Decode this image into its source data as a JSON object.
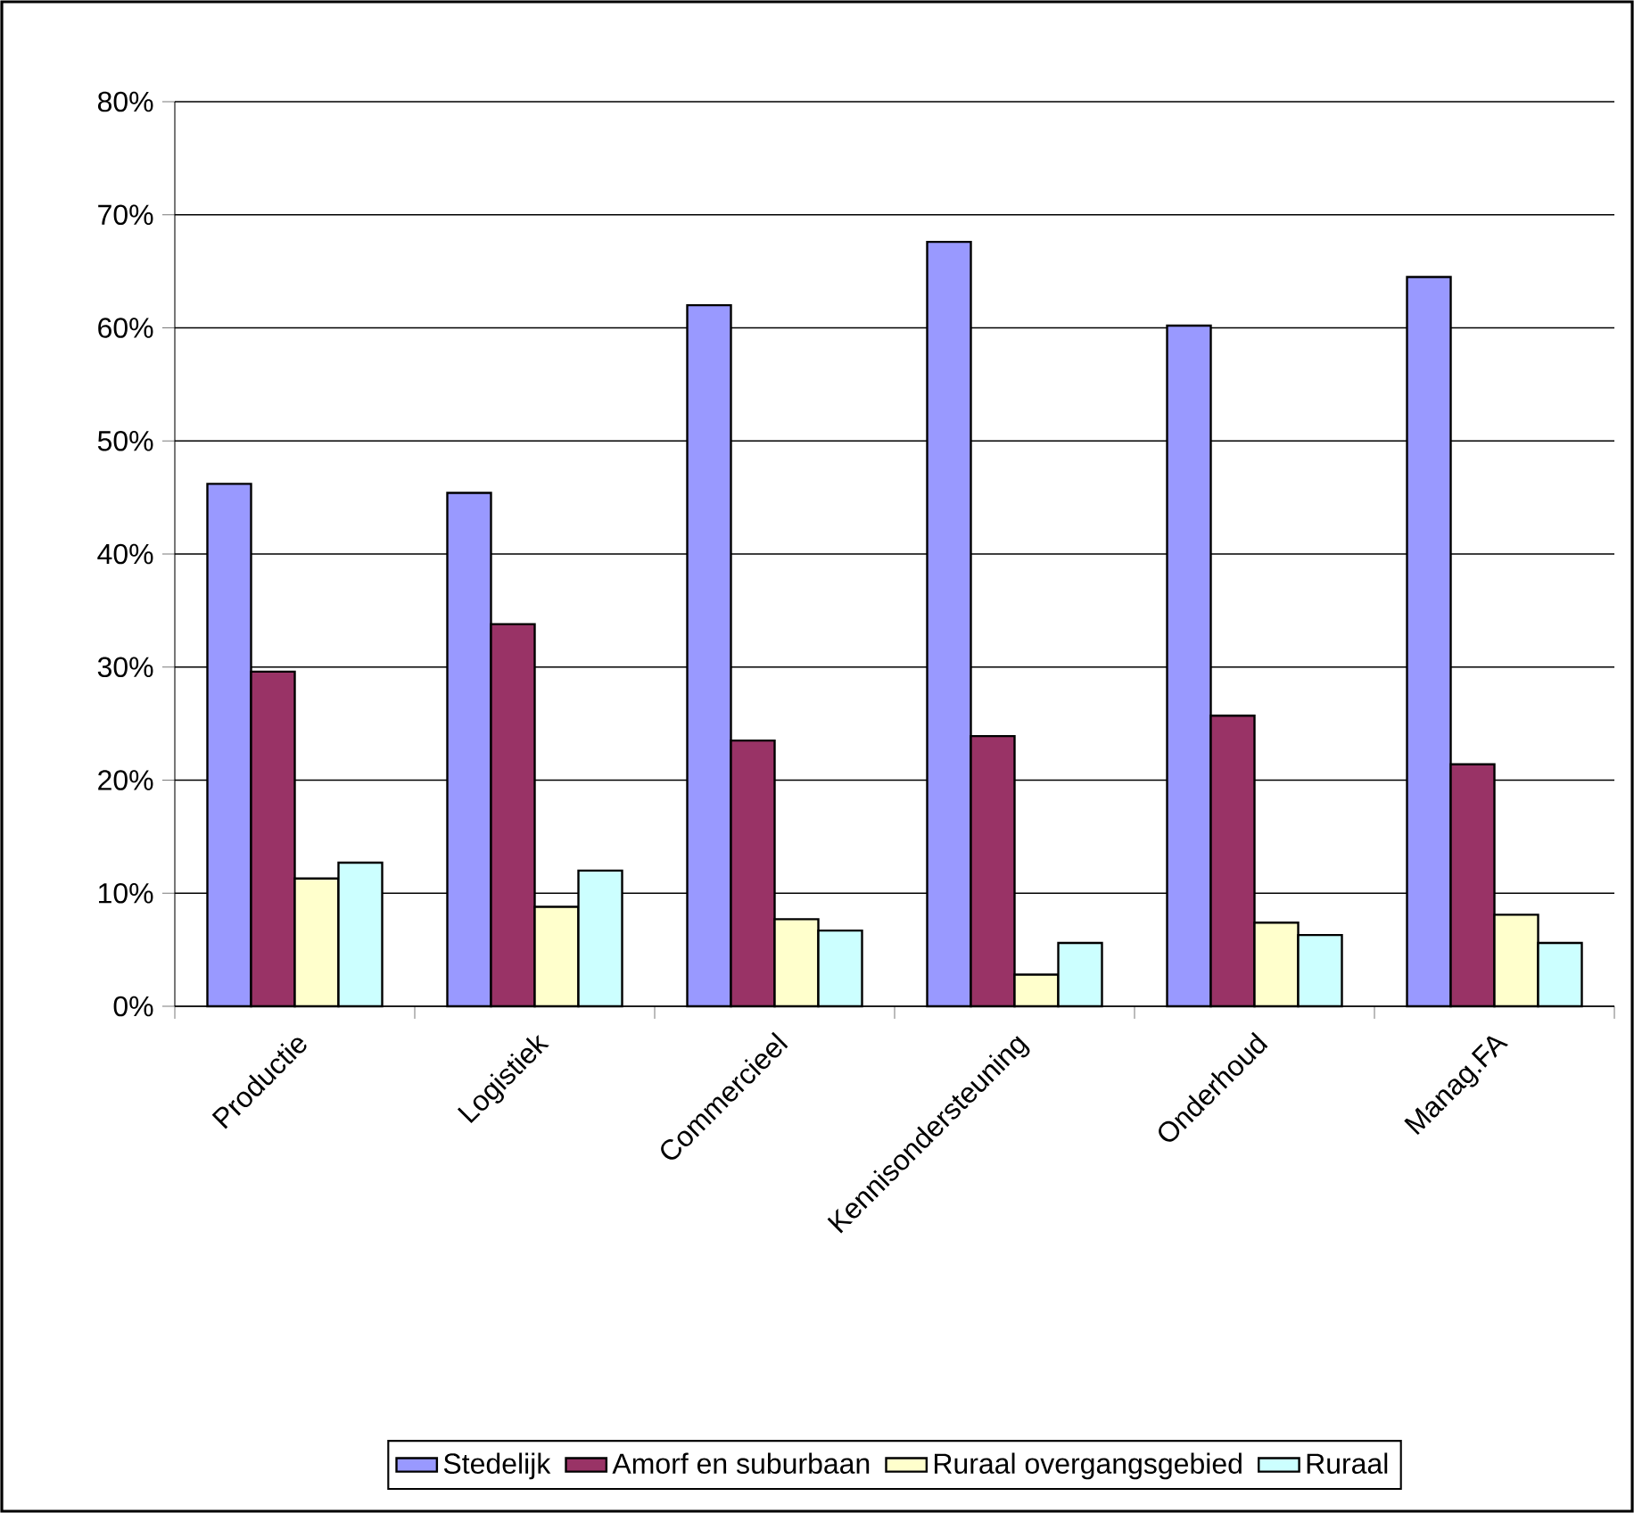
{
  "chart_data": {
    "type": "bar",
    "categories": [
      "Productie",
      "Logistiek",
      "Commercieel",
      "Kennisondersteuning",
      "Onderhoud",
      "Manag.FA"
    ],
    "series": [
      {
        "name": "Stedelijk",
        "color": "#9999ff",
        "values": [
          46.2,
          45.4,
          62.0,
          67.6,
          60.2,
          64.5
        ]
      },
      {
        "name": "Amorf en suburbaan",
        "color": "#993366",
        "values": [
          29.6,
          33.8,
          23.5,
          23.9,
          25.7,
          21.4
        ]
      },
      {
        "name": "Ruraal overgangsgebied",
        "color": "#ffffcc",
        "values": [
          11.3,
          8.8,
          7.7,
          2.8,
          7.4,
          8.1
        ]
      },
      {
        "name": "Ruraal",
        "color": "#ccffff",
        "values": [
          12.7,
          12.0,
          6.7,
          5.6,
          6.3,
          5.6
        ]
      }
    ],
    "ylim": [
      0,
      80
    ],
    "yticks": [
      {
        "value": 0,
        "label": "0%"
      },
      {
        "value": 10,
        "label": "10%"
      },
      {
        "value": 20,
        "label": "20%"
      },
      {
        "value": 30,
        "label": "30%"
      },
      {
        "value": 40,
        "label": "40%"
      },
      {
        "value": 50,
        "label": "50%"
      },
      {
        "value": 60,
        "label": "60%"
      },
      {
        "value": 70,
        "label": "70%"
      },
      {
        "value": 80,
        "label": "80%"
      }
    ],
    "grid": "y",
    "legend": "bottom"
  }
}
